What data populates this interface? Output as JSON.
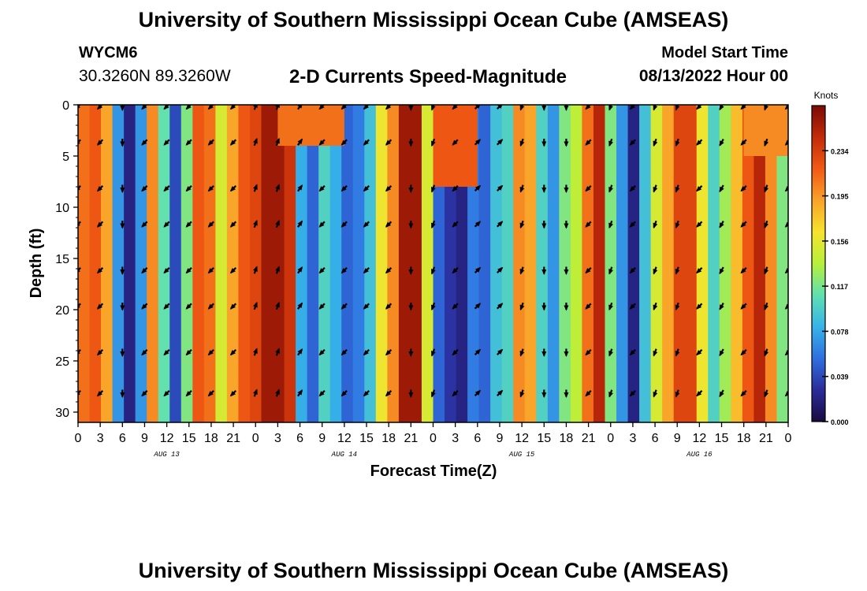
{
  "header": {
    "title": "University of Southern Mississippi Ocean Cube (AMSEAS)",
    "station": "WYCM6",
    "coordinates": "30.3260N  89.3260W",
    "plot_title": "2-D Currents Speed-Magnitude",
    "model_start_label": "Model Start Time",
    "model_start_value": "08/13/2022 Hour 00"
  },
  "footer": {
    "title": "University of Southern Mississippi Ocean Cube (AMSEAS)"
  },
  "chart_data": {
    "type": "heatmap",
    "title": "2-D Currents Speed-Magnitude",
    "xlabel": "Forecast Time(Z)",
    "ylabel": "Depth (ft)",
    "x_tick_labels": [
      "0",
      "3",
      "6",
      "9",
      "12",
      "15",
      "18",
      "21",
      "0",
      "3",
      "6",
      "9",
      "12",
      "15",
      "18",
      "21",
      "0",
      "3",
      "6",
      "9",
      "12",
      "15",
      "18",
      "21",
      "0",
      "3",
      "6",
      "9",
      "12",
      "15",
      "18",
      "21",
      "0"
    ],
    "date_labels": [
      "AUG 13",
      "AUG 14",
      "AUG 15",
      "AUG 16"
    ],
    "xlim_hours": [
      0,
      96
    ],
    "ylim_ft": [
      0,
      31
    ],
    "y_ticks": [
      0,
      5,
      10,
      15,
      20,
      25,
      30
    ],
    "y_tick_labels": [
      "0",
      "5",
      "10",
      "15",
      "20",
      "25",
      "30"
    ],
    "colorbar": {
      "label": "Knots",
      "range": [
        0,
        0.273
      ],
      "ticks": [
        0.0,
        0.039,
        0.078,
        0.117,
        0.156,
        0.195,
        0.234
      ],
      "tick_labels": [
        "0.000",
        "0.039",
        "0.078",
        "0.117",
        "0.156",
        "0.195",
        "0.234"
      ],
      "colors": [
        "#1a0a40",
        "#2a2c9a",
        "#2f6fe0",
        "#37b3e8",
        "#5fe0b0",
        "#b6f03a",
        "#f6e32e",
        "#f9a22a",
        "#f15a14",
        "#c22b08",
        "#7a0a05"
      ]
    },
    "speed_profile_knots": [
      0.21,
      0.22,
      0.19,
      0.07,
      0.02,
      0.07,
      0.2,
      0.11,
      0.04,
      0.12,
      0.22,
      0.21,
      0.15,
      0.19,
      0.22,
      0.23,
      0.26,
      0.26,
      0.24,
      0.08,
      0.05,
      0.1,
      0.08,
      0.05,
      0.06,
      0.09,
      0.16,
      0.2,
      0.26,
      0.26,
      0.15,
      0.05,
      0.03,
      0.02,
      0.06,
      0.05,
      0.09,
      0.1,
      0.2,
      0.19,
      0.1,
      0.07,
      0.12,
      0.14,
      0.21,
      0.25,
      0.12,
      0.07,
      0.02,
      0.09,
      0.15,
      0.19,
      0.23,
      0.23,
      0.16,
      0.1,
      0.13,
      0.18,
      0.22,
      0.25,
      0.2,
      0.12
    ],
    "surface_layer_speed_knots": {
      "hours_27_36": 0.21,
      "hours_48_54": 0.22,
      "hours_90_96": 0.2
    },
    "arrow_columns_hours": [
      0,
      3,
      6,
      9,
      12,
      15,
      18,
      21,
      24,
      27,
      30,
      33,
      36,
      39,
      42,
      45,
      48,
      51,
      54,
      57,
      60,
      63,
      66,
      69,
      72,
      75,
      78,
      81,
      84,
      87,
      90,
      93,
      96
    ],
    "arrow_rows_ft": [
      0,
      3.5,
      8,
      11.5,
      16,
      19.5,
      24,
      28
    ],
    "arrow_direction_deg_by_column": [
      225,
      225,
      180,
      225,
      225,
      225,
      225,
      225,
      20,
      20,
      35,
      225,
      225,
      225,
      225,
      180,
      200,
      225,
      45,
      45,
      200,
      180,
      180,
      225,
      200,
      225,
      200,
      200,
      225,
      210,
      225,
      200,
      225
    ]
  }
}
